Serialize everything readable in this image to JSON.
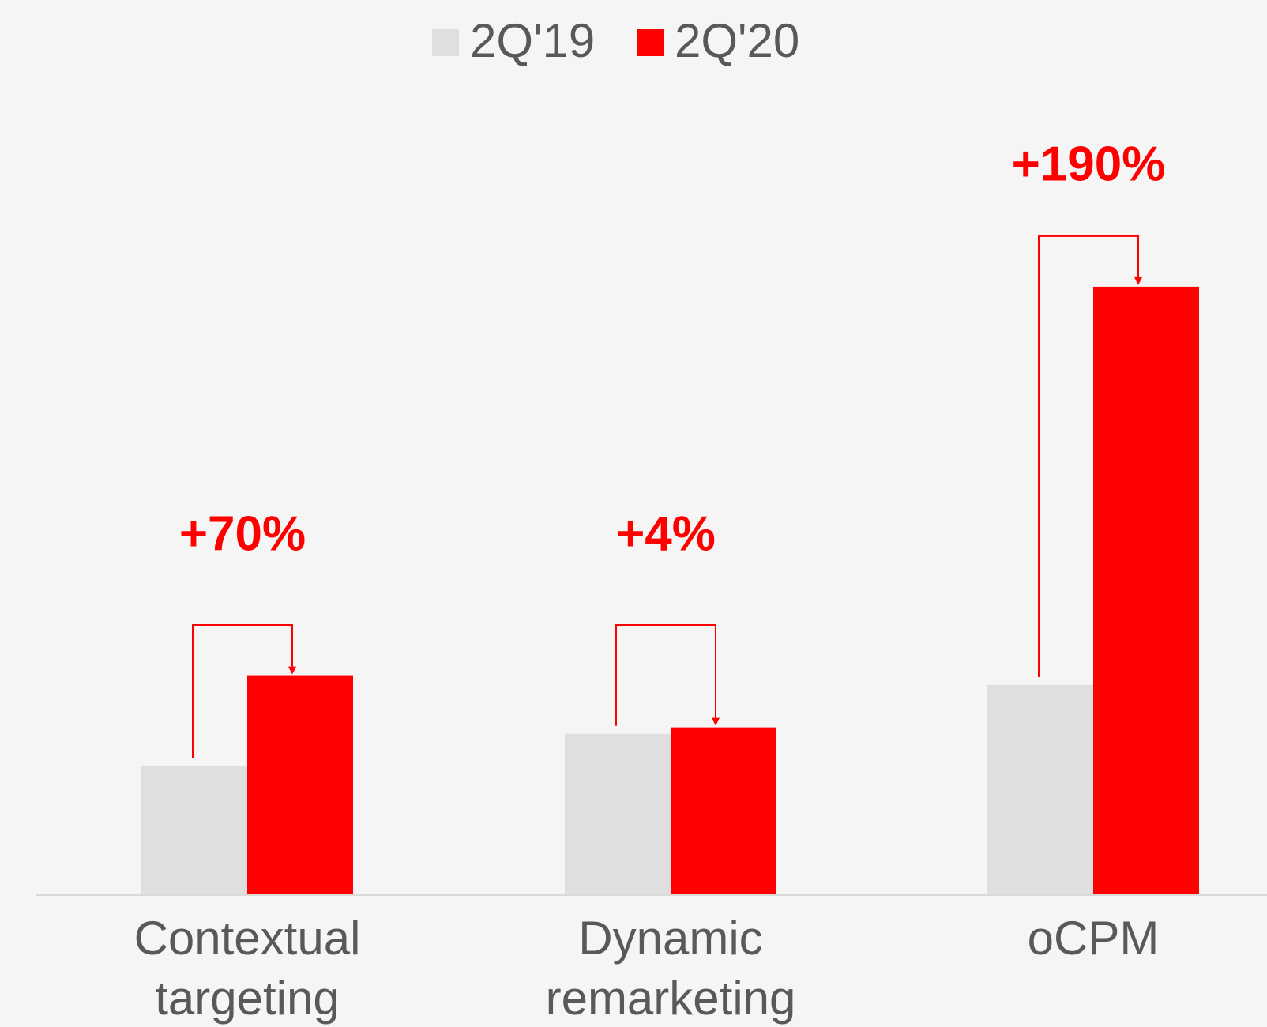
{
  "chart_data": {
    "type": "bar",
    "categories": [
      "Contextual targeting",
      "Dynamic remarketing",
      "oCPM"
    ],
    "series": [
      {
        "name": "2Q'19",
        "color": "#dfdfdf",
        "values": [
          100,
          125,
          163
        ]
      },
      {
        "name": "2Q'20",
        "color": "#ff0000",
        "values": [
          170,
          130,
          473
        ]
      }
    ],
    "annotations": [
      "+70%",
      "+4%",
      "+190%"
    ],
    "ylim": [
      0,
      500
    ]
  }
}
